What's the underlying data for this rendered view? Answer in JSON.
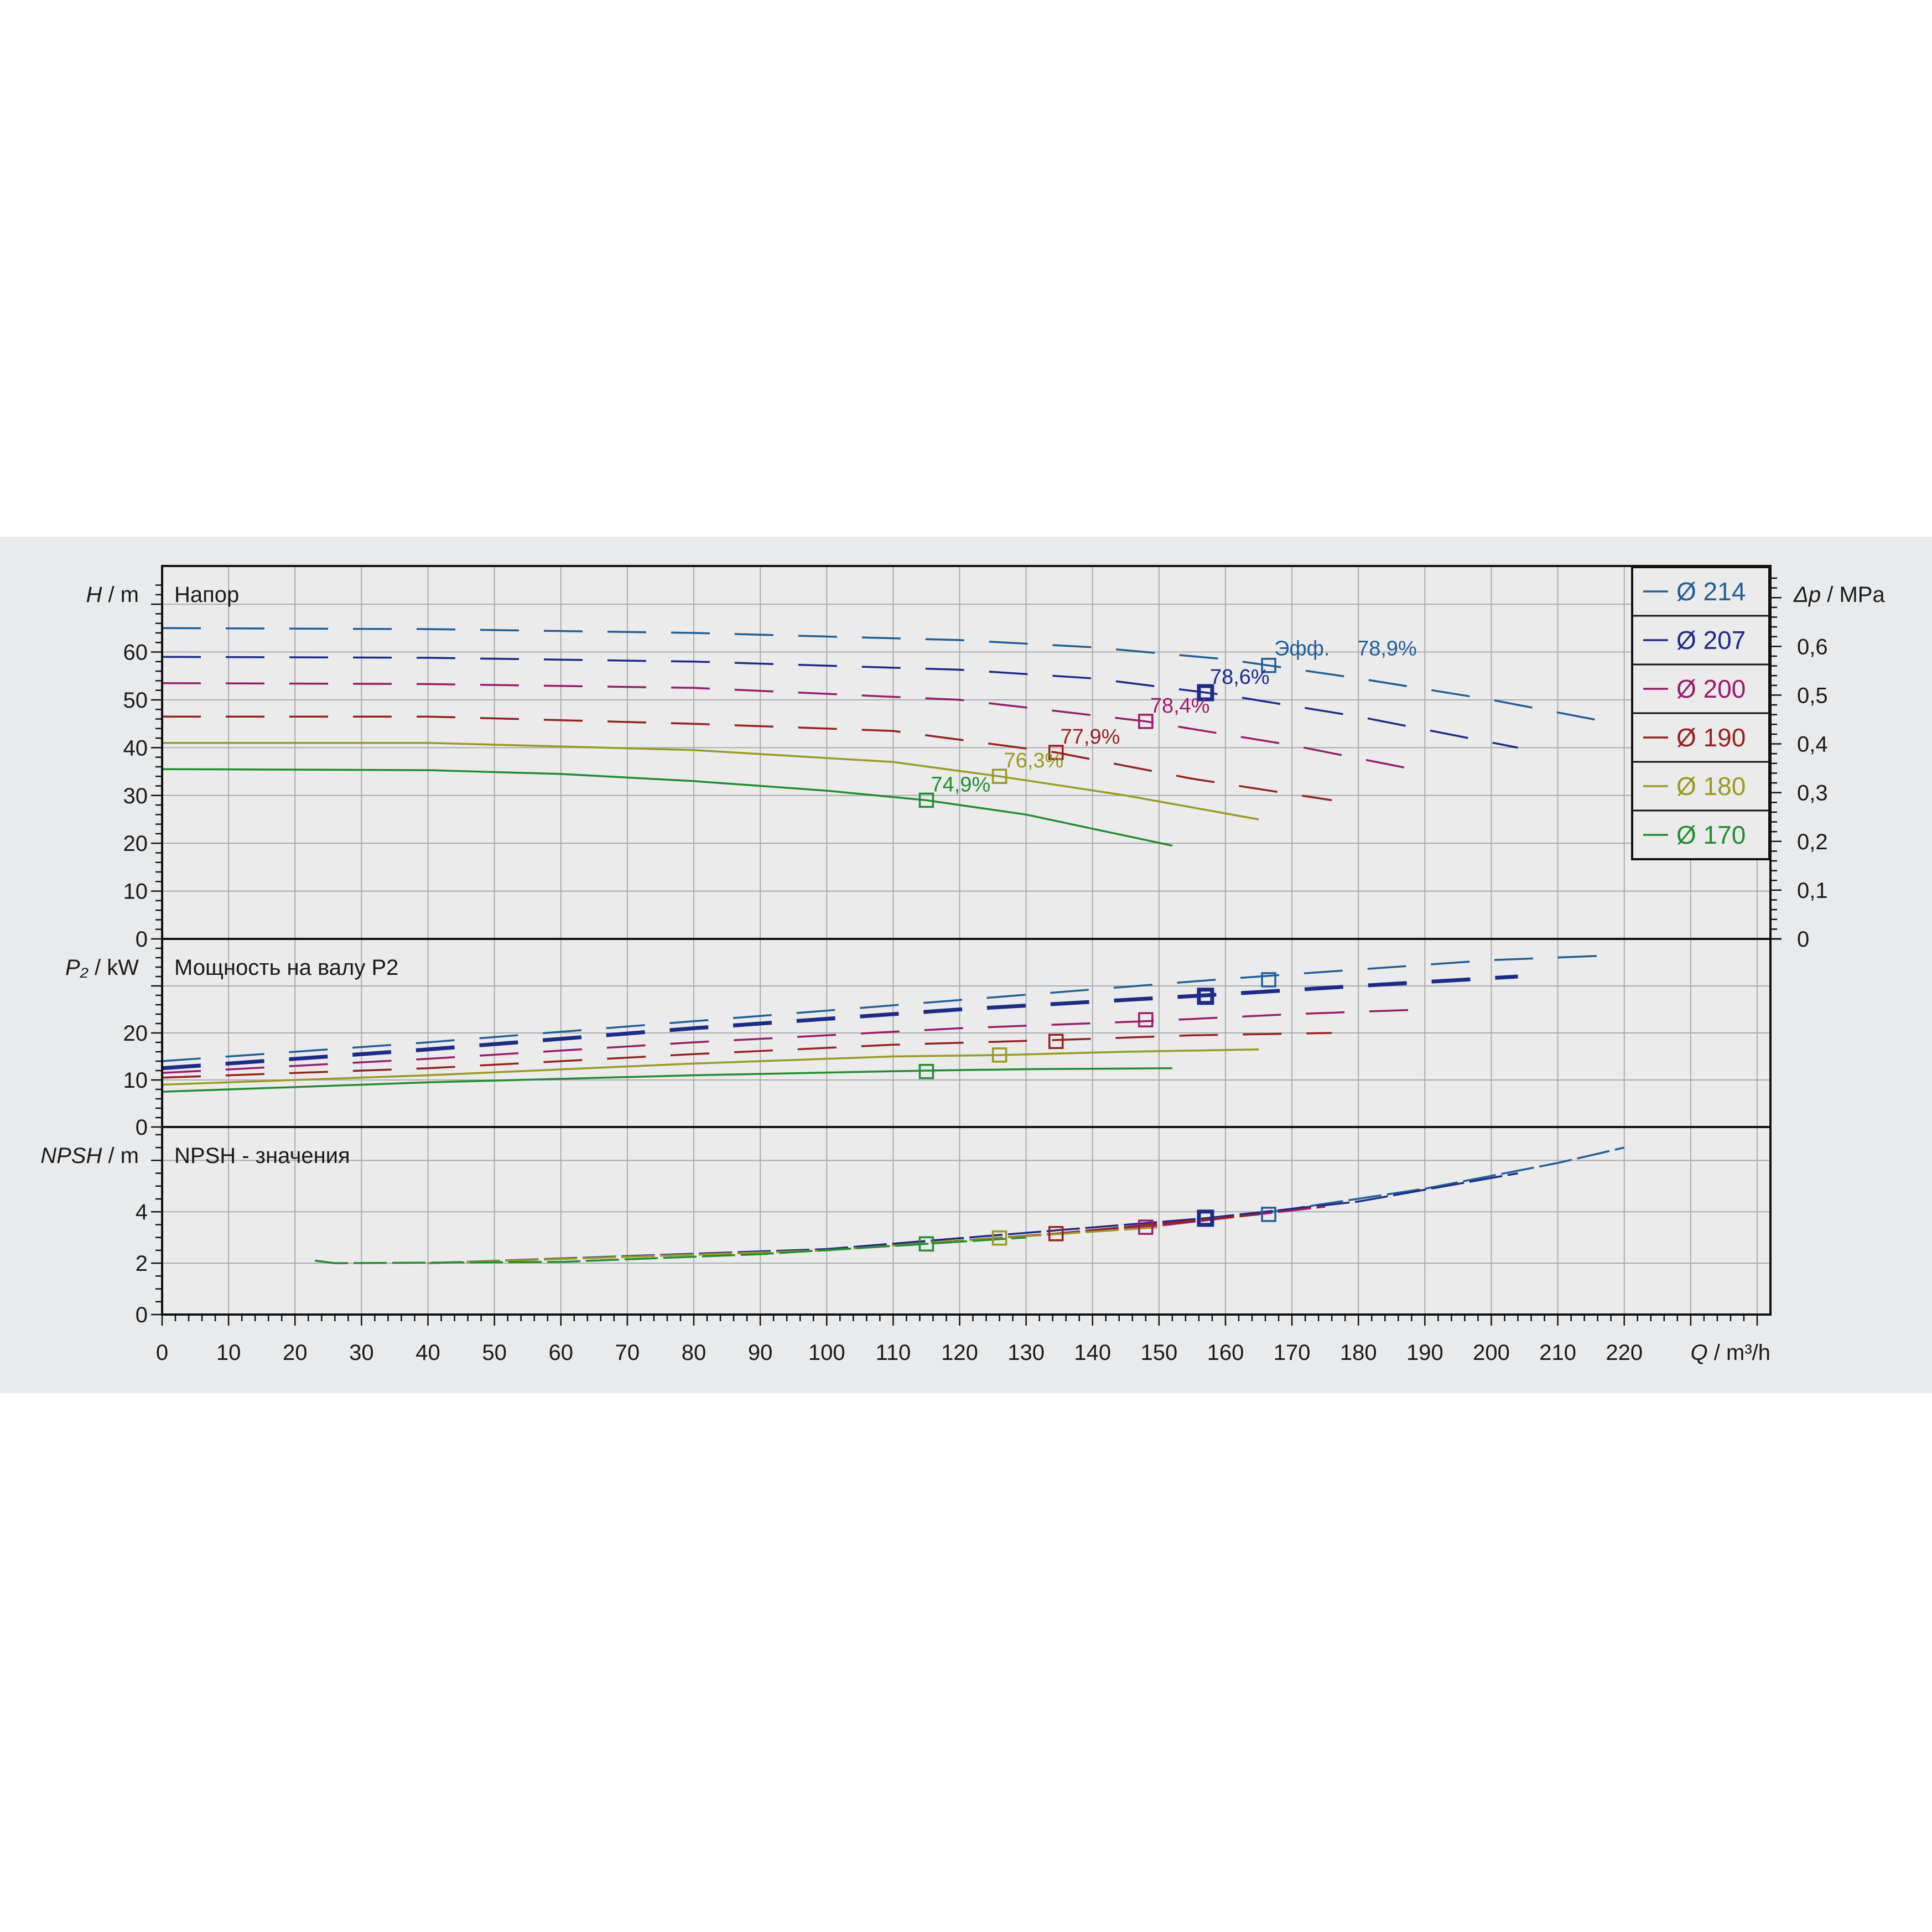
{
  "chart_data": {
    "type": "line",
    "panels": {
      "head": {
        "title": "Напор",
        "y_symbol": "H",
        "y_unit": "m",
        "ylim": [
          0,
          78
        ],
        "y_ticks": [
          "0",
          "10",
          "20",
          "30",
          "40",
          "50",
          "60"
        ],
        "y2_symbol": "Δp",
        "y2_unit": "MPa",
        "y2_ticks": [
          "0",
          "0,1",
          "0,2",
          "0,3",
          "0,4",
          "0,5",
          "0,6"
        ]
      },
      "power": {
        "title": "Мощность на валу P2",
        "y_symbol": "P₂",
        "y_unit": "kW",
        "ylim": [
          0,
          40
        ],
        "y_ticks": [
          "0",
          "10",
          "20"
        ]
      },
      "npsh": {
        "title": "NPSH - значения",
        "y_symbol": "NPSH",
        "y_unit": "m",
        "ylim": [
          0,
          7.3
        ],
        "y_ticks": [
          "0",
          "2",
          "4"
        ]
      }
    },
    "x_symbol": "Q",
    "x_unit": "m³/h",
    "xlim": [
      0,
      242
    ],
    "x_ticks": [
      "0",
      "10",
      "20",
      "30",
      "40",
      "50",
      "60",
      "70",
      "80",
      "90",
      "100",
      "110",
      "120",
      "130",
      "140",
      "150",
      "160",
      "170",
      "180",
      "190",
      "200",
      "210",
      "220"
    ],
    "efficiency_prefix": "Эфф.",
    "series": [
      {
        "name": "Ø 214",
        "color": "#1f5f9a",
        "head": [
          [
            0,
            65
          ],
          [
            40,
            64.8
          ],
          [
            80,
            64
          ],
          [
            120,
            62.5
          ],
          [
            140,
            61
          ],
          [
            160,
            58.5
          ],
          [
            180,
            54.5
          ],
          [
            200,
            50
          ],
          [
            217,
            45.5
          ]
        ],
        "power": [
          [
            0,
            14
          ],
          [
            40,
            18
          ],
          [
            80,
            22.5
          ],
          [
            120,
            27
          ],
          [
            160,
            31.5
          ],
          [
            200,
            35.5
          ],
          [
            218,
            36.5
          ]
        ],
        "npsh": [
          [
            167,
            4.0
          ],
          [
            190,
            4.9
          ],
          [
            210,
            5.9
          ],
          [
            220,
            6.5
          ]
        ],
        "bep": {
          "q": 166.5,
          "head": 57.2,
          "power": 31.3,
          "npsh": 3.9,
          "eff": "78,9%"
        }
      },
      {
        "name": "Ø 207",
        "color": "#1c2a8c",
        "head": [
          [
            0,
            59
          ],
          [
            40,
            58.8
          ],
          [
            80,
            58
          ],
          [
            120,
            56.3
          ],
          [
            140,
            54.5
          ],
          [
            160,
            51
          ],
          [
            180,
            46.5
          ],
          [
            204,
            40
          ]
        ],
        "power": [
          [
            0,
            12.5
          ],
          [
            40,
            16.5
          ],
          [
            80,
            21
          ],
          [
            120,
            25
          ],
          [
            157,
            28
          ],
          [
            180,
            30
          ],
          [
            204,
            32
          ]
        ],
        "npsh": [
          [
            40,
            2.0
          ],
          [
            100,
            2.55
          ],
          [
            157,
            3.75
          ],
          [
            180,
            4.4
          ],
          [
            204,
            5.5
          ]
        ],
        "bep": {
          "q": 157,
          "head": 51.5,
          "power": 27.8,
          "npsh": 3.75,
          "eff": "78,6%"
        }
      },
      {
        "name": "Ø 200",
        "color": "#9c1a6c",
        "head": [
          [
            0,
            53.5
          ],
          [
            40,
            53.3
          ],
          [
            80,
            52.5
          ],
          [
            120,
            50
          ],
          [
            148,
            45.5
          ],
          [
            170,
            40.5
          ],
          [
            190,
            35
          ]
        ],
        "power": [
          [
            0,
            11.5
          ],
          [
            40,
            14.5
          ],
          [
            80,
            18
          ],
          [
            120,
            21
          ],
          [
            148,
            22.5
          ],
          [
            170,
            24
          ],
          [
            190,
            25
          ]
        ],
        "npsh": [
          [
            40,
            2.0
          ],
          [
            100,
            2.5
          ],
          [
            148,
            3.4
          ],
          [
            175,
            4.2
          ]
        ],
        "bep": {
          "q": 148,
          "head": 45.5,
          "power": 22.8,
          "npsh": 3.4,
          "eff": "78,4%"
        }
      },
      {
        "name": "Ø 190",
        "color": "#9a1f1f",
        "head": [
          [
            0,
            46.5
          ],
          [
            40,
            46.5
          ],
          [
            80,
            45
          ],
          [
            110,
            43.5
          ],
          [
            134.5,
            39
          ],
          [
            155,
            33.5
          ],
          [
            176,
            29
          ]
        ],
        "power": [
          [
            0,
            10.5
          ],
          [
            40,
            12.5
          ],
          [
            80,
            15.5
          ],
          [
            110,
            17.5
          ],
          [
            134.5,
            18.5
          ],
          [
            155,
            19.5
          ],
          [
            176,
            20
          ]
        ],
        "npsh": [
          [
            40,
            2.0
          ],
          [
            100,
            2.5
          ],
          [
            134.5,
            3.15
          ],
          [
            165,
            3.9
          ]
        ],
        "bep": {
          "q": 134.5,
          "head": 39,
          "power": 18.2,
          "npsh": 3.15,
          "eff": "77,9%"
        }
      },
      {
        "name": "Ø 180",
        "color": "#9a9a1e",
        "head": [
          [
            0,
            41
          ],
          [
            40,
            41
          ],
          [
            80,
            39.5
          ],
          [
            110,
            37
          ],
          [
            126,
            34
          ],
          [
            145,
            30
          ],
          [
            165,
            25
          ]
        ],
        "power": [
          [
            0,
            9
          ],
          [
            40,
            11
          ],
          [
            80,
            13.5
          ],
          [
            110,
            15
          ],
          [
            126,
            15.3
          ],
          [
            145,
            16
          ],
          [
            165,
            16.5
          ]
        ],
        "npsh": [
          [
            40,
            2.0
          ],
          [
            100,
            2.5
          ],
          [
            126,
            2.98
          ],
          [
            150,
            3.4
          ]
        ],
        "bep": {
          "q": 126,
          "head": 34,
          "power": 15.3,
          "npsh": 2.98,
          "eff": "76,3%"
        }
      },
      {
        "name": "Ø 170",
        "color": "#1f8f2f",
        "head": [
          [
            0,
            35.5
          ],
          [
            40,
            35.3
          ],
          [
            60,
            34.5
          ],
          [
            80,
            33
          ],
          [
            100,
            31
          ],
          [
            115,
            29
          ],
          [
            130,
            26
          ],
          [
            152,
            19.5
          ]
        ],
        "power": [
          [
            0,
            7.5
          ],
          [
            40,
            9.5
          ],
          [
            80,
            11
          ],
          [
            115,
            12
          ],
          [
            130,
            12.3
          ],
          [
            152,
            12.5
          ]
        ],
        "npsh": [
          [
            23,
            2.1
          ],
          [
            26,
            2.0
          ],
          [
            60,
            2.05
          ],
          [
            90,
            2.35
          ],
          [
            115,
            2.75
          ],
          [
            130,
            3.0
          ]
        ],
        "bep": {
          "q": 115,
          "head": 29,
          "power": 11.8,
          "npsh": 2.75,
          "eff": "74,9%"
        }
      }
    ]
  }
}
